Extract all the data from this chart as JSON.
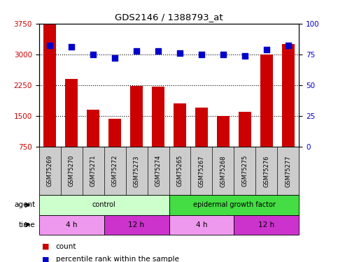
{
  "title": "GDS2146 / 1388793_at",
  "samples": [
    "GSM75269",
    "GSM75270",
    "GSM75271",
    "GSM75272",
    "GSM75273",
    "GSM75274",
    "GSM75265",
    "GSM75267",
    "GSM75268",
    "GSM75275",
    "GSM75276",
    "GSM75277"
  ],
  "bar_values": [
    3750,
    2400,
    1650,
    1430,
    2230,
    2210,
    1800,
    1700,
    1500,
    1600,
    3000,
    3250
  ],
  "dot_values": [
    82,
    81,
    75,
    72,
    78,
    78,
    76,
    75,
    75,
    74,
    79,
    82
  ],
  "ylim_left": [
    750,
    3750
  ],
  "ylim_right": [
    0,
    100
  ],
  "yticks_left": [
    750,
    1500,
    2250,
    3000,
    3750
  ],
  "yticks_right": [
    0,
    25,
    50,
    75,
    100
  ],
  "bar_color": "#cc0000",
  "dot_color": "#0000cc",
  "agent_labels": [
    {
      "text": "control",
      "start": 0,
      "end": 6,
      "color": "#ccffcc"
    },
    {
      "text": "epidermal growth factor",
      "start": 6,
      "end": 12,
      "color": "#44dd44"
    }
  ],
  "time_labels": [
    {
      "text": "4 h",
      "start": 0,
      "end": 3,
      "color": "#ee99ee"
    },
    {
      "text": "12 h",
      "start": 3,
      "end": 6,
      "color": "#cc33cc"
    },
    {
      "text": "4 h",
      "start": 6,
      "end": 9,
      "color": "#ee99ee"
    },
    {
      "text": "12 h",
      "start": 9,
      "end": 12,
      "color": "#cc33cc"
    }
  ],
  "legend_count_color": "#cc0000",
  "legend_dot_color": "#0000cc",
  "ylabel_right_color": "#0000cc",
  "ylabel_left_color": "#cc0000",
  "bg_color": "#ffffff",
  "sample_box_color": "#cccccc",
  "bar_width": 0.6,
  "dot_size": 35
}
